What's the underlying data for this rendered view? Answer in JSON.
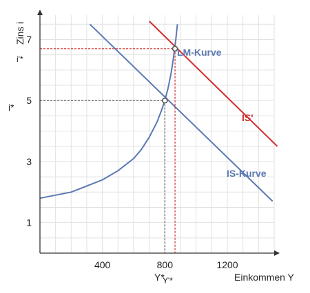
{
  "chart_data": {
    "type": "line",
    "xlabel": "Einkommen Y",
    "ylabel": "Zins i",
    "xlim": [
      0,
      1500
    ],
    "ylim": [
      0,
      7.8
    ],
    "grid": true,
    "x_ticks": [
      400,
      800,
      1200
    ],
    "y_ticks": [
      1,
      3,
      5,
      7
    ],
    "series": [
      {
        "name": "LM-Kurve",
        "color": "#5b78b2",
        "x": [
          0,
          200,
          400,
          500,
          600,
          650,
          700,
          750,
          780,
          800,
          820,
          840,
          855,
          870,
          880
        ],
        "y": [
          1.8,
          2.0,
          2.4,
          2.7,
          3.1,
          3.4,
          3.8,
          4.3,
          4.7,
          5.0,
          5.4,
          5.9,
          6.4,
          7.0,
          7.5
        ]
      },
      {
        "name": "IS-Kurve",
        "color": "#5b78b2",
        "x": [
          320,
          1490
        ],
        "y": [
          7.5,
          1.7
        ]
      },
      {
        "name": "IS'",
        "color": "#d42a2a",
        "x": [
          700,
          1520
        ],
        "y": [
          7.6,
          3.5
        ]
      }
    ],
    "reference_lines": [
      {
        "label": "i*",
        "value_label": "5",
        "x": 800,
        "y": 5.0,
        "color": "#555555"
      },
      {
        "label": "i'*",
        "x": 865,
        "y": 6.7,
        "color": "#d42a2a"
      }
    ],
    "x_markers": [
      {
        "label": "Y*",
        "x": 800,
        "color": "#222222"
      },
      {
        "label": "Y'*",
        "x": 865,
        "color": "#d42a2a"
      }
    ],
    "points": [
      {
        "x": 800,
        "y": 5.0
      },
      {
        "x": 865,
        "y": 6.7
      }
    ]
  }
}
